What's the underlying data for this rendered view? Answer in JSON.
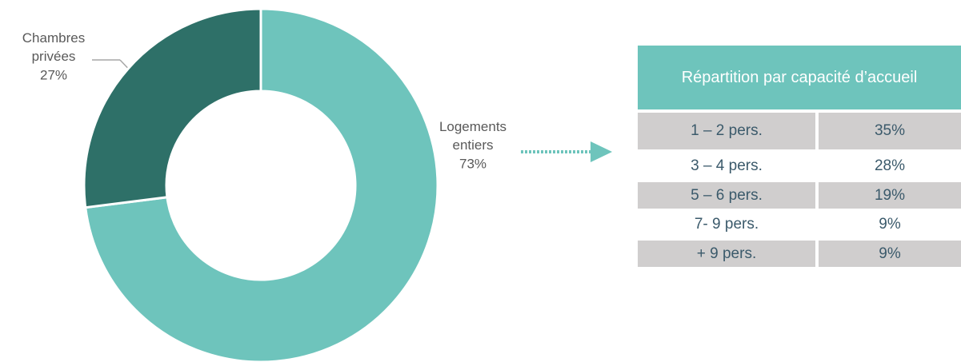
{
  "chart_data": {
    "type": "donut",
    "categories": [
      "Logements entiers",
      "Chambres privées"
    ],
    "values": [
      73,
      27
    ],
    "value_labels": [
      "73%",
      "27%"
    ],
    "colors": [
      "#6ec4bc",
      "#2e7068"
    ]
  },
  "table": {
    "title": "Répartition par capacité d’accueil",
    "rows": [
      [
        "1 – 2 pers.",
        "35%"
      ],
      [
        "3 – 4 pers.",
        "28%"
      ],
      [
        "5 – 6 pers.",
        "19%"
      ],
      [
        "7- 9 pers.",
        "9%"
      ],
      [
        "+ 9 pers.",
        "9%"
      ]
    ]
  }
}
